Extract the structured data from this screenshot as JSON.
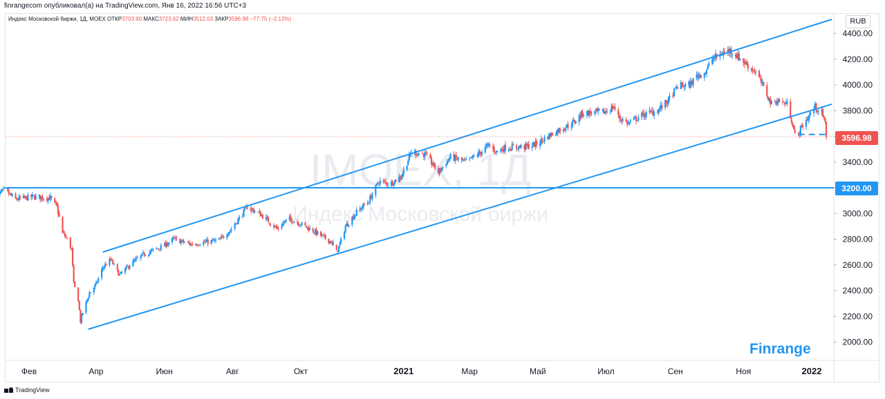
{
  "header": {
    "publisher_line": "finrangecom опубликовал(а) на TradingView.com, Янв 16, 2022 16:56 UTC+3"
  },
  "legend": {
    "instrument": "Индекс Московской биржи, 1Д, MOEX",
    "open_label": "ОТКР",
    "open_value": "3703.90",
    "high_label": "МАКС",
    "high_value": "3723.62",
    "low_label": "МИН",
    "low_value": "3512.03",
    "close_label": "ЗАКР",
    "close_value": "3596.98",
    "change": "−77.75 (−2.12%)"
  },
  "watermark": {
    "symbol": "IMOEX, 1Д",
    "name": "Индекс Московской биржи"
  },
  "brand": "Finrange",
  "footer": {
    "logo_text": "TradingView"
  },
  "colors": {
    "up": "#2196f3",
    "down": "#ef5350",
    "line": "#2196f3",
    "text": "#131722"
  },
  "chart_data": {
    "type": "candlestick",
    "currency": "RUB",
    "ylim": [
      1920,
      4510
    ],
    "xlim": [
      "2020-01-01",
      "2022-01-19"
    ],
    "y_ticks": [
      2000,
      2200,
      2400,
      2600,
      2800,
      3000,
      3200,
      3400,
      3600,
      3800,
      4000,
      4200,
      4400
    ],
    "y_tick_labels": [
      "2000.00",
      "2200.00",
      "2400.00",
      "2600.00",
      "2800.00",
      "3000.00",
      "3200.00",
      "3400.00",
      "3600.00",
      "3800.00",
      "4000.00",
      "4200.00",
      "4400.00"
    ],
    "x_ticks": [
      {
        "date": "2020-02-01",
        "label": "Фев"
      },
      {
        "date": "2020-04-01",
        "label": "Апр"
      },
      {
        "date": "2020-06-01",
        "label": "Июн"
      },
      {
        "date": "2020-08-01",
        "label": "Авг"
      },
      {
        "date": "2020-10-01",
        "label": "Окт"
      },
      {
        "date": "2021-01-01",
        "label": "2021"
      },
      {
        "date": "2021-03-01",
        "label": "Мар"
      },
      {
        "date": "2021-05-01",
        "label": "Май"
      },
      {
        "date": "2021-07-01",
        "label": "Июл"
      },
      {
        "date": "2021-09-01",
        "label": "Сен"
      },
      {
        "date": "2021-11-01",
        "label": "Ноя"
      },
      {
        "date": "2022-01-01",
        "label": "2022"
      }
    ],
    "price_path": [
      [
        "2020-01-01",
        3130
      ],
      [
        "2020-01-10",
        3180
      ],
      [
        "2020-01-20",
        3110
      ],
      [
        "2020-02-05",
        3130
      ],
      [
        "2020-02-20",
        3120
      ],
      [
        "2020-02-26",
        3050
      ],
      [
        "2020-03-02",
        2850
      ],
      [
        "2020-03-06",
        2800
      ],
      [
        "2020-03-10",
        2720
      ],
      [
        "2020-03-12",
        2450
      ],
      [
        "2020-03-16",
        2330
      ],
      [
        "2020-03-18",
        2160
      ],
      [
        "2020-03-20",
        2230
      ],
      [
        "2020-03-26",
        2380
      ],
      [
        "2020-04-01",
        2450
      ],
      [
        "2020-04-07",
        2580
      ],
      [
        "2020-04-14",
        2640
      ],
      [
        "2020-04-22",
        2520
      ],
      [
        "2020-05-01",
        2600
      ],
      [
        "2020-05-13",
        2680
      ],
      [
        "2020-06-01",
        2750
      ],
      [
        "2020-06-09",
        2800
      ],
      [
        "2020-06-25",
        2760
      ],
      [
        "2020-07-10",
        2780
      ],
      [
        "2020-07-20",
        2790
      ],
      [
        "2020-07-31",
        2880
      ],
      [
        "2020-08-10",
        3000
      ],
      [
        "2020-08-14",
        3050
      ],
      [
        "2020-08-25",
        3000
      ],
      [
        "2020-09-01",
        2950
      ],
      [
        "2020-09-10",
        2880
      ],
      [
        "2020-09-20",
        2960
      ],
      [
        "2020-10-01",
        2920
      ],
      [
        "2020-10-15",
        2850
      ],
      [
        "2020-10-28",
        2780
      ],
      [
        "2020-11-02",
        2700
      ],
      [
        "2020-11-05",
        2760
      ],
      [
        "2020-11-10",
        2900
      ],
      [
        "2020-11-20",
        3010
      ],
      [
        "2020-12-01",
        3100
      ],
      [
        "2020-12-10",
        3250
      ],
      [
        "2020-12-20",
        3230
      ],
      [
        "2020-12-30",
        3290
      ],
      [
        "2021-01-08",
        3480
      ],
      [
        "2021-01-20",
        3460
      ],
      [
        "2021-01-28",
        3370
      ],
      [
        "2021-02-01",
        3320
      ],
      [
        "2021-02-12",
        3440
      ],
      [
        "2021-02-26",
        3400
      ],
      [
        "2021-03-10",
        3470
      ],
      [
        "2021-03-18",
        3530
      ],
      [
        "2021-03-25",
        3480
      ],
      [
        "2021-04-01",
        3510
      ],
      [
        "2021-04-20",
        3520
      ],
      [
        "2021-04-30",
        3540
      ],
      [
        "2021-05-10",
        3600
      ],
      [
        "2021-05-20",
        3650
      ],
      [
        "2021-06-01",
        3700
      ],
      [
        "2021-06-10",
        3780
      ],
      [
        "2021-06-30",
        3790
      ],
      [
        "2021-07-08",
        3830
      ],
      [
        "2021-07-12",
        3750
      ],
      [
        "2021-07-21",
        3700
      ],
      [
        "2021-08-01",
        3760
      ],
      [
        "2021-08-16",
        3800
      ],
      [
        "2021-08-26",
        3880
      ],
      [
        "2021-09-03",
        3990
      ],
      [
        "2021-09-14",
        4000
      ],
      [
        "2021-09-20",
        4070
      ],
      [
        "2021-09-28",
        4100
      ],
      [
        "2021-10-04",
        4200
      ],
      [
        "2021-10-14",
        4250
      ],
      [
        "2021-10-20",
        4270
      ],
      [
        "2021-10-27",
        4220
      ],
      [
        "2021-11-05",
        4150
      ],
      [
        "2021-11-12",
        4100
      ],
      [
        "2021-11-19",
        3980
      ],
      [
        "2021-11-26",
        3850
      ],
      [
        "2021-12-01",
        3880
      ],
      [
        "2021-12-10",
        3850
      ],
      [
        "2021-12-15",
        3700
      ],
      [
        "2021-12-18",
        3560
      ],
      [
        "2021-12-22",
        3660
      ],
      [
        "2022-01-04",
        3830
      ],
      [
        "2022-01-10",
        3780
      ],
      [
        "2022-01-13",
        3700
      ],
      [
        "2022-01-14",
        3597
      ]
    ],
    "annotations": [
      {
        "type": "trendline",
        "name": "channel-upper",
        "from": [
          "2020-04-07",
          2700
        ],
        "to": [
          "2022-01-19",
          4510
        ]
      },
      {
        "type": "trendline",
        "name": "channel-lower",
        "from": [
          "2020-03-25",
          2100
        ],
        "to": [
          "2022-01-19",
          3850
        ]
      },
      {
        "type": "hline",
        "name": "support-level",
        "value": 3200,
        "label": "3200.00"
      },
      {
        "type": "dashed-hline",
        "name": "december-low",
        "from": "2021-12-20",
        "to": "2022-01-17",
        "value": 3615
      },
      {
        "type": "last-price",
        "value": 3596.98,
        "label": "3596.98"
      }
    ]
  }
}
